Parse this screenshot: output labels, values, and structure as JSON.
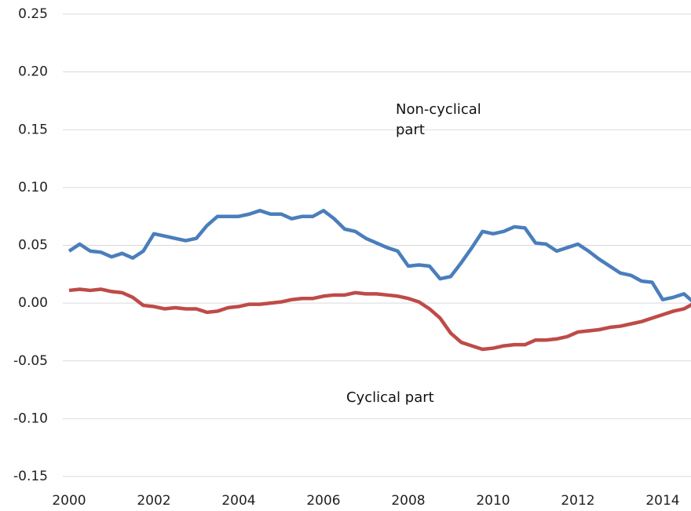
{
  "chart_data": {
    "type": "line",
    "x": [
      2000,
      2000.25,
      2000.5,
      2000.75,
      2001,
      2001.25,
      2001.5,
      2001.75,
      2002,
      2002.25,
      2002.5,
      2002.75,
      2003,
      2003.25,
      2003.5,
      2003.75,
      2004,
      2004.25,
      2004.5,
      2004.75,
      2005,
      2005.25,
      2005.5,
      2005.75,
      2006,
      2006.25,
      2006.5,
      2006.75,
      2007,
      2007.25,
      2007.5,
      2007.75,
      2008,
      2008.25,
      2008.5,
      2008.75,
      2009,
      2009.25,
      2009.5,
      2009.75,
      2010,
      2010.25,
      2010.5,
      2010.75,
      2011,
      2011.25,
      2011.5,
      2011.75,
      2012,
      2012.25,
      2012.5,
      2012.75,
      2013,
      2013.25,
      2013.5,
      2013.75,
      2014,
      2014.25,
      2014.5,
      2014.75
    ],
    "series": [
      {
        "name": "Non-cyclical part",
        "color": "#4a7ebb",
        "values": [
          0.045,
          0.051,
          0.045,
          0.044,
          0.04,
          0.043,
          0.039,
          0.045,
          0.06,
          0.058,
          0.056,
          0.054,
          0.056,
          0.067,
          0.075,
          0.075,
          0.075,
          0.077,
          0.08,
          0.077,
          0.077,
          0.073,
          0.075,
          0.075,
          0.08,
          0.073,
          0.064,
          0.062,
          0.056,
          0.052,
          0.048,
          0.045,
          0.032,
          0.033,
          0.032,
          0.021,
          0.023,
          0.035,
          0.048,
          0.062,
          0.06,
          0.062,
          0.066,
          0.065,
          0.052,
          0.051,
          0.045,
          0.048,
          0.051,
          0.045,
          0.038,
          0.032,
          0.026,
          0.024,
          0.019,
          0.018,
          0.003,
          0.005,
          0.008,
          0.0
        ]
      },
      {
        "name": "Cyclical part",
        "color": "#be4b48",
        "values": [
          0.011,
          0.012,
          0.011,
          0.012,
          0.01,
          0.009,
          0.005,
          -0.002,
          -0.003,
          -0.005,
          -0.004,
          -0.005,
          -0.005,
          -0.008,
          -0.007,
          -0.004,
          -0.003,
          -0.001,
          -0.001,
          0.0,
          0.001,
          0.003,
          0.004,
          0.004,
          0.006,
          0.007,
          0.007,
          0.009,
          0.008,
          0.008,
          0.007,
          0.006,
          0.004,
          0.001,
          -0.005,
          -0.013,
          -0.026,
          -0.034,
          -0.037,
          -0.04,
          -0.039,
          -0.037,
          -0.036,
          -0.036,
          -0.032,
          -0.032,
          -0.031,
          -0.029,
          -0.025,
          -0.024,
          -0.023,
          -0.021,
          -0.02,
          -0.018,
          -0.016,
          -0.013,
          -0.01,
          -0.007,
          -0.005,
          0.0
        ]
      }
    ],
    "xlim": [
      2000,
      2014.75
    ],
    "xticks": [
      2000,
      2002,
      2004,
      2006,
      2008,
      2010,
      2012,
      2014
    ],
    "ylim": [
      -0.15,
      0.25
    ],
    "yticks": [
      {
        "value": -0.15,
        "label": "-0.15"
      },
      {
        "value": -0.1,
        "label": "-0.10"
      },
      {
        "value": -0.05,
        "label": "-0.05"
      },
      {
        "value": 0,
        "label": "0.00"
      },
      {
        "value": 0.05,
        "label": "0.05"
      },
      {
        "value": 0.1,
        "label": "0.10"
      },
      {
        "value": 0.15,
        "label": "0.15"
      },
      {
        "value": 0.2,
        "label": "0.20"
      },
      {
        "value": 0.25,
        "label": "0.25"
      }
    ],
    "grid": true
  }
}
